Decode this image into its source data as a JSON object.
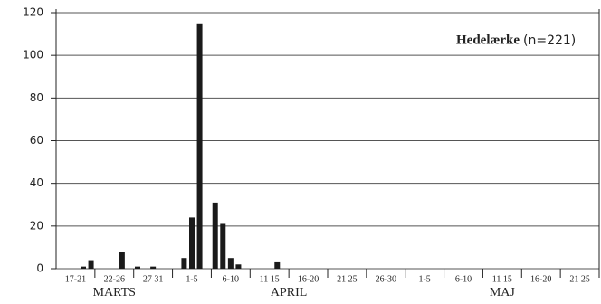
{
  "chart_data": {
    "type": "bar",
    "title": "Hedelærke",
    "subtitle": "(n=221)",
    "period_labels": [
      "17-21",
      "22-26",
      "27 31",
      "1-5",
      "6-10",
      "11 15",
      "16-20",
      "21 25",
      "26-30",
      "1-5",
      "6-10",
      "11 15",
      "16-20",
      "21 25"
    ],
    "months": [
      "MARTS",
      "APRIL",
      "MAJ"
    ],
    "values": [
      0,
      0,
      0,
      1,
      4,
      0,
      0,
      0,
      8,
      0,
      1,
      0,
      1,
      0,
      0,
      0,
      5,
      24,
      115,
      0,
      31,
      21,
      5,
      2,
      0,
      0,
      0,
      0,
      3,
      0,
      0,
      0,
      0,
      0,
      0,
      0,
      0,
      0,
      0,
      0,
      0,
      0,
      0,
      0,
      0,
      0,
      0,
      0,
      0,
      0,
      0,
      0,
      0,
      0,
      0,
      0,
      0,
      0,
      0,
      0,
      0,
      0,
      0,
      0,
      0,
      0,
      0,
      0,
      0,
      0
    ],
    "color": "#1a1a1a",
    "ylim": [
      0,
      120
    ],
    "yticks": [
      0,
      20,
      40,
      60,
      80,
      100,
      120
    ],
    "grid": true
  }
}
